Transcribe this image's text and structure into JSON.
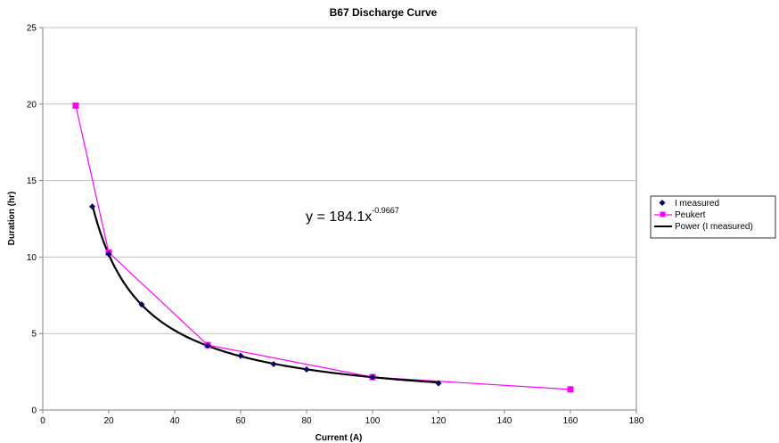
{
  "chart_data": {
    "type": "scatter",
    "title": "B67 Discharge Curve",
    "xlabel": "Current (A)",
    "ylabel": "Duration (hr)",
    "xlim": [
      0,
      180
    ],
    "ylim": [
      0,
      25
    ],
    "x_ticks": [
      "0",
      "20",
      "40",
      "60",
      "80",
      "100",
      "120",
      "140",
      "160",
      "180"
    ],
    "y_ticks": [
      "0",
      "5",
      "10",
      "15",
      "20",
      "25"
    ],
    "grid": "horizontal major gridlines",
    "legend_position": "right",
    "series": [
      {
        "name": "I measured",
        "kind": "markers",
        "marker": "diamond",
        "color": "#000066",
        "x": [
          15,
          20,
          30,
          50,
          60,
          70,
          80,
          100,
          120
        ],
        "y": [
          13.3,
          10.2,
          6.9,
          4.2,
          3.55,
          3.0,
          2.65,
          2.15,
          1.75
        ]
      },
      {
        "name": "Peukert",
        "kind": "line+markers",
        "marker": "square",
        "color": "#ff00ff",
        "x": [
          10,
          20,
          50,
          100,
          160
        ],
        "y": [
          19.9,
          10.3,
          4.25,
          2.15,
          1.35
        ]
      },
      {
        "name": "Power (I measured)",
        "kind": "trendline",
        "color": "#000000",
        "equation": {
          "base": "y = 184.1x",
          "exponent": "-0.9667"
        },
        "coefficient": 184.1,
        "power": -0.9667,
        "x_range": [
          15,
          120
        ]
      }
    ]
  }
}
